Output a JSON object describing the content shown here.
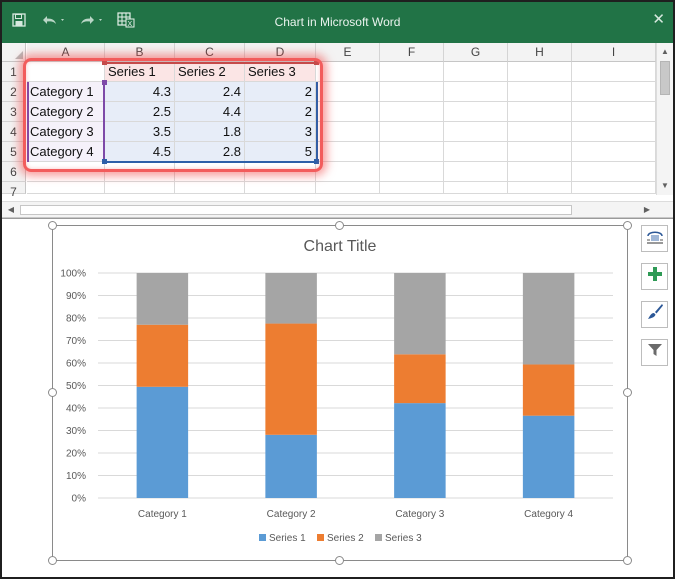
{
  "window": {
    "title": "Chart in Microsoft Word",
    "save_icon": "save-icon",
    "undo_icon": "undo-icon",
    "redo_icon": "redo-icon",
    "sheet_icon": "edit-data-in-excel-icon",
    "close_label": "✕"
  },
  "sheet": {
    "columns": [
      "A",
      "B",
      "C",
      "D",
      "E",
      "F",
      "G",
      "H",
      "I"
    ],
    "rows": [
      "1",
      "2",
      "3",
      "4",
      "5",
      "6",
      "7"
    ],
    "header_row": [
      "",
      "Series 1",
      "Series 2",
      "Series 3"
    ],
    "data_rows": [
      [
        "Category 1",
        "4.3",
        "2.4",
        "2"
      ],
      [
        "Category 2",
        "2.5",
        "4.4",
        "2"
      ],
      [
        "Category 3",
        "3.5",
        "1.8",
        "3"
      ],
      [
        "Category 4",
        "4.5",
        "2.8",
        "5"
      ]
    ]
  },
  "colors": {
    "series1": "#5b9bd5",
    "series2": "#ed7d31",
    "series3": "#a5a5a5",
    "titlebar": "#217346",
    "highlight": "#f25c5c"
  },
  "side_buttons": [
    "layout-options-icon",
    "chart-elements-plus-icon",
    "chart-styles-brush-icon",
    "chart-filters-funnel-icon"
  ],
  "chart_data": {
    "type": "bar",
    "stacking": "percent",
    "title": "Chart Title",
    "categories": [
      "Category 1",
      "Category 2",
      "Category 3",
      "Category 4"
    ],
    "series": [
      {
        "name": "Series 1",
        "values": [
          4.3,
          2.5,
          3.5,
          4.5
        ]
      },
      {
        "name": "Series 2",
        "values": [
          2.4,
          4.4,
          1.8,
          2.8
        ]
      },
      {
        "name": "Series 3",
        "values": [
          2,
          2,
          3,
          5
        ]
      }
    ],
    "y_ticks": [
      "0%",
      "10%",
      "20%",
      "30%",
      "40%",
      "50%",
      "60%",
      "70%",
      "80%",
      "90%",
      "100%"
    ],
    "ylim": [
      0,
      100
    ],
    "grid": true,
    "legend_position": "bottom"
  }
}
